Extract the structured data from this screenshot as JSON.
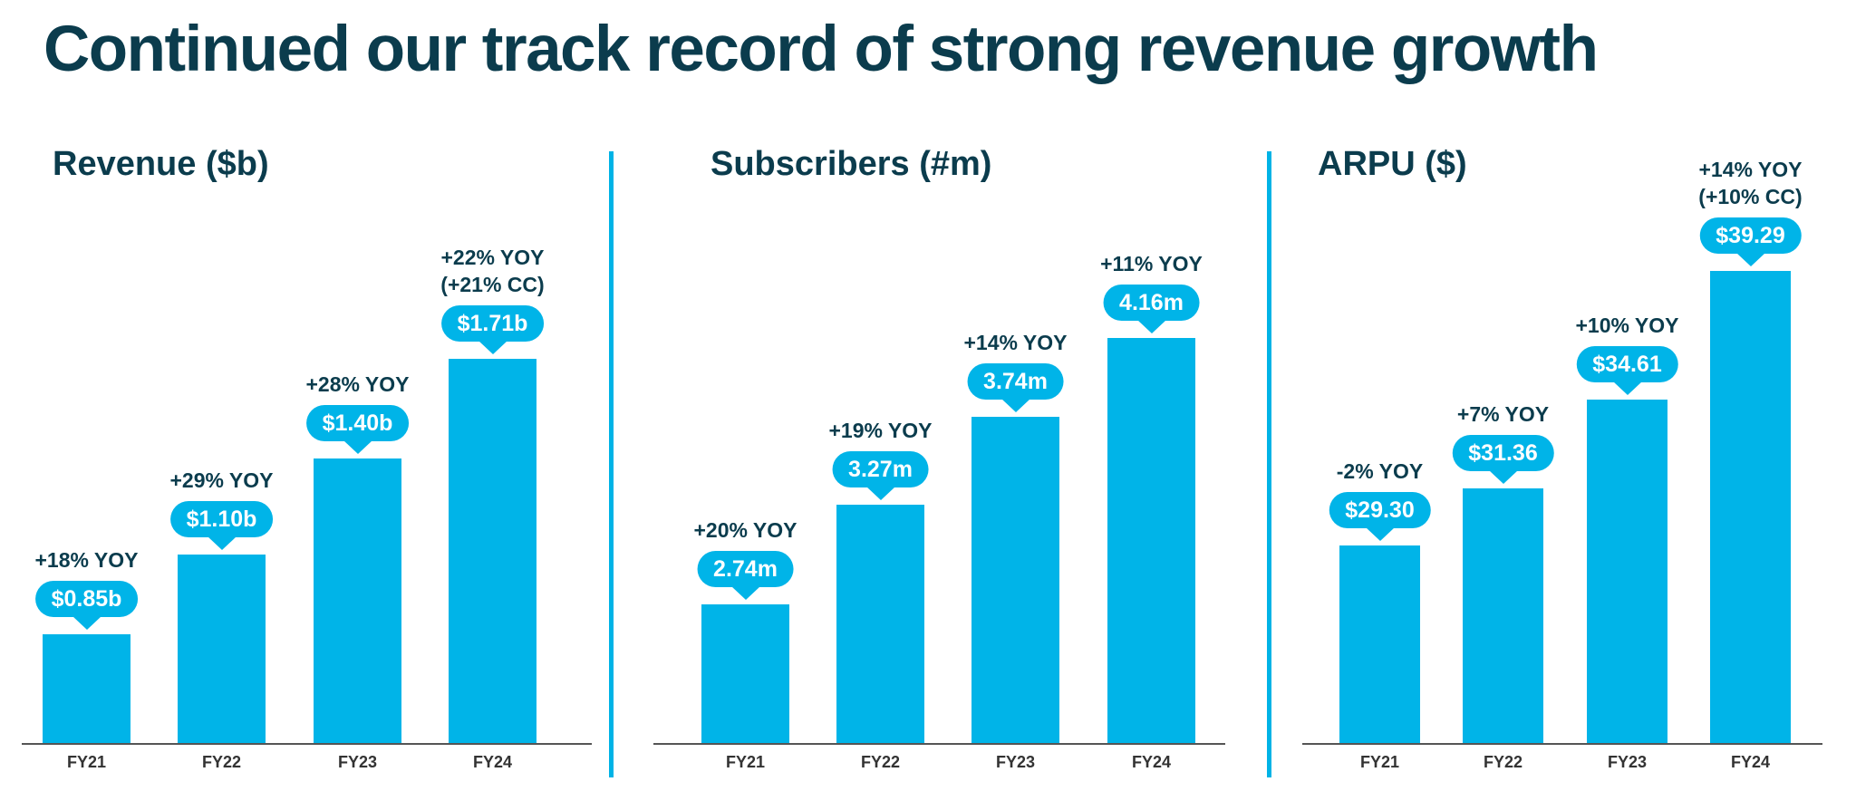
{
  "title": "Continued our track record of strong revenue growth",
  "colors": {
    "bar": "#00b4e8",
    "title": "#0b3c4d",
    "divider": "#00b3e6"
  },
  "chart_data": [
    {
      "type": "bar",
      "title": "Revenue ($b)",
      "categories": [
        "FY21",
        "FY22",
        "FY23",
        "FY24"
      ],
      "values": [
        0.85,
        1.1,
        1.4,
        1.71
      ],
      "value_labels": [
        "$0.85b",
        "$1.10b",
        "$1.40b",
        "$1.71b"
      ],
      "annotations": [
        [
          "+18% YOY"
        ],
        [
          "+29% YOY"
        ],
        [
          "+28% YOY"
        ],
        [
          "+22% YOY",
          "(+21% CC)"
        ]
      ],
      "ylim": [
        0.51,
        2.0
      ],
      "grid": false
    },
    {
      "type": "bar",
      "title": "Subscribers (#m)",
      "categories": [
        "FY21",
        "FY22",
        "FY23",
        "FY24"
      ],
      "values": [
        2.74,
        3.27,
        3.74,
        4.16
      ],
      "value_labels": [
        "2.74m",
        "3.27m",
        "3.74m",
        "4.16m"
      ],
      "annotations": [
        [
          "+20% YOY"
        ],
        [
          "+19% YOY"
        ],
        [
          "+14% YOY"
        ],
        [
          "+11% YOY"
        ]
      ],
      "ylim": [
        2.0,
        4.6
      ],
      "grid": false
    },
    {
      "type": "bar",
      "title": "ARPU ($)",
      "categories": [
        "FY21",
        "FY22",
        "FY23",
        "FY24"
      ],
      "values": [
        29.3,
        31.36,
        34.61,
        39.29
      ],
      "value_labels": [
        "$29.30",
        "$31.36",
        "$34.61",
        "$39.29"
      ],
      "annotations": [
        [
          "-2% YOY"
        ],
        [
          "+7% YOY"
        ],
        [
          "+10% YOY"
        ],
        [
          "+14% YOY",
          "(+10% CC)"
        ]
      ],
      "ylim": [
        22.1,
        40.0
      ],
      "grid": false
    }
  ]
}
